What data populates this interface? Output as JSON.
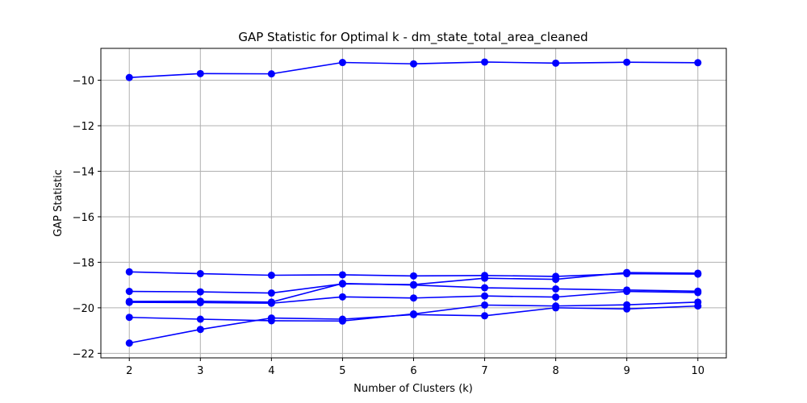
{
  "chart_data": {
    "type": "line",
    "title": "GAP Statistic for Optimal k - dm_state_total_area_cleaned",
    "xlabel": "Number of Clusters (k)",
    "ylabel": "GAP Statistic",
    "x": [
      2,
      3,
      4,
      5,
      6,
      7,
      8,
      9,
      10
    ],
    "xlim": [
      1.6,
      10.4
    ],
    "ylim": [
      -22.2,
      -8.6
    ],
    "xticks": [
      "2",
      "3",
      "4",
      "5",
      "6",
      "7",
      "8",
      "9",
      "10"
    ],
    "yticks": [
      "−10",
      "−12",
      "−14",
      "−16",
      "−18",
      "−20",
      "−22"
    ],
    "ytick_values": [
      -10,
      -12,
      -14,
      -16,
      -18,
      -20,
      -22
    ],
    "grid": true,
    "color": "#0000ff",
    "series": [
      {
        "values": [
          -9.88,
          -9.71,
          -9.72,
          -9.22,
          -9.28,
          -9.2,
          -9.25,
          -9.21,
          -9.23
        ]
      },
      {
        "values": [
          -18.42,
          -18.5,
          -18.57,
          -18.55,
          -18.6,
          -18.58,
          -18.62,
          -18.5,
          -18.52
        ]
      },
      {
        "values": [
          -19.28,
          -19.3,
          -19.35,
          -18.95,
          -18.98,
          -18.7,
          -18.75,
          -18.45,
          -18.48
        ]
      },
      {
        "values": [
          -19.72,
          -19.71,
          -19.75,
          -18.93,
          -19.0,
          -19.12,
          -19.17,
          -19.22,
          -19.27
        ]
      },
      {
        "values": [
          -19.76,
          -19.77,
          -19.8,
          -19.52,
          -19.57,
          -19.48,
          -19.53,
          -19.28,
          -19.33
        ]
      },
      {
        "values": [
          -20.42,
          -20.5,
          -20.57,
          -20.58,
          -20.27,
          -19.88,
          -19.92,
          -19.87,
          -19.75
        ]
      },
      {
        "values": [
          -21.55,
          -20.95,
          -20.45,
          -20.5,
          -20.3,
          -20.35,
          -20.0,
          -20.05,
          -19.92
        ]
      }
    ]
  }
}
